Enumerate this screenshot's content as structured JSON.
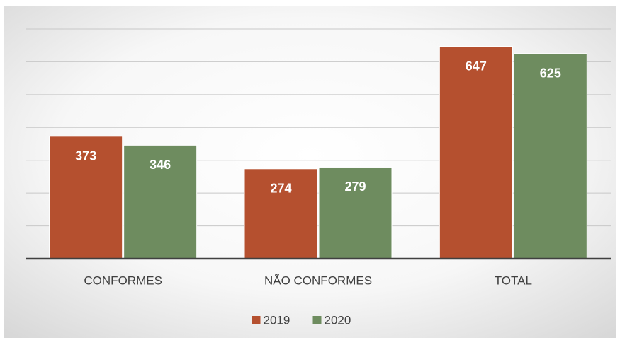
{
  "chart_data": {
    "type": "bar",
    "categories": [
      "CONFORMES",
      "NÃO CONFORMES",
      "TOTAL"
    ],
    "series": [
      {
        "name": "2019",
        "color": "#b5502f",
        "values": [
          373,
          274,
          647
        ]
      },
      {
        "name": "2020",
        "color": "#6e8c5f",
        "values": [
          346,
          279,
          625
        ]
      }
    ],
    "ylim": [
      0,
      700
    ],
    "yticks": [
      0,
      100,
      200,
      300,
      400,
      500,
      600,
      700
    ],
    "grid": true,
    "legend": "bottom"
  }
}
